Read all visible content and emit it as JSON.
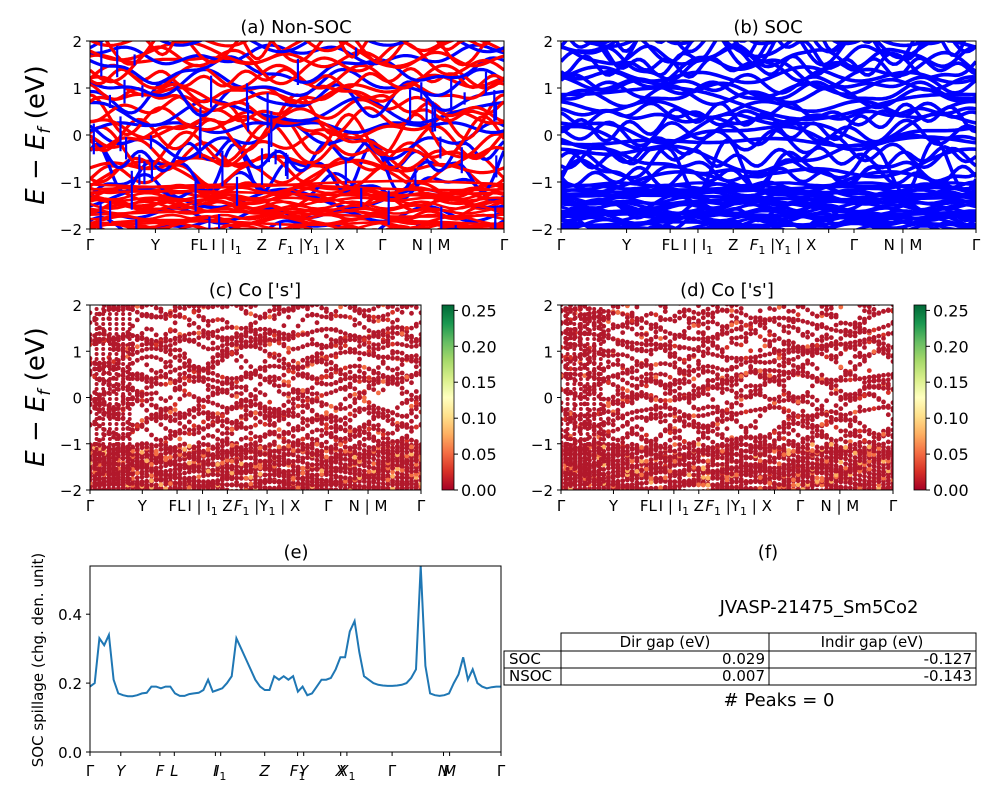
{
  "panels": {
    "a": {
      "title": "(a) Non-SOC"
    },
    "b": {
      "title": "(b) SOC"
    },
    "c": {
      "title": "(c)  Co ['s']"
    },
    "d": {
      "title": "(d) Co ['s']"
    },
    "e": {
      "title": "(e)"
    },
    "f": {
      "title": "(f)"
    }
  },
  "band_ylabel": "E − E_f (eV)",
  "band_ylabel_main": "E − E",
  "band_ylabel_sub": "f",
  "band_ylabel_unit": " (eV)",
  "band_yticks": [
    "2",
    "1",
    "0",
    "−1",
    "−2"
  ],
  "kpath_labels": {
    "gamma": "Γ",
    "y": "Y",
    "f_l": "FL",
    "i_i1": "I | I",
    "i1_sub": "1",
    "z": "Z",
    "f1_y1": "F",
    "f1_sub": "1",
    "y1_mid": " |Y",
    "y1_sub": "1",
    "x_part": "X",
    "n_m": "N | M"
  },
  "colorbar": {
    "ticks": [
      "0.25",
      "0.20",
      "0.15",
      "0.10",
      "0.05",
      "0.00"
    ],
    "colors": [
      "#006837",
      "#1a9850",
      "#66bd63",
      "#a6d96a",
      "#d9ef8b",
      "#ffffbf",
      "#fee08b",
      "#fdae61",
      "#f46d43",
      "#d73027",
      "#a50026"
    ]
  },
  "colors": {
    "non_soc_red": "#ff0000",
    "non_soc_blue": "#0000ff",
    "soc_blue": "#0000ff",
    "spillage_line": "#1f77b4",
    "proj_main": "#b2182b"
  },
  "spillage": {
    "ylabel": "SOC spillage (chg. den. unit)",
    "yticks": [
      "0.0",
      "0.2",
      "0.4"
    ],
    "xticks": [
      "Γ",
      "Y",
      "F",
      "L",
      "I",
      "I",
      "Z",
      "F",
      "Y",
      "X",
      "X",
      "Γ",
      "N",
      "M",
      "Γ"
    ]
  },
  "table": {
    "name": "JVASP-21475_Sm5Co2",
    "headers": [
      "Dir gap (eV)",
      "Indir gap (eV)"
    ],
    "rows": [
      {
        "label": "SOC",
        "dir": "0.029",
        "indir": "-0.127"
      },
      {
        "label": "NSOC",
        "dir": "0.007",
        "indir": "-0.143"
      }
    ],
    "peaks": "# Peaks = 0"
  },
  "chart_data": [
    {
      "type": "line",
      "title": "(a) Non-SOC",
      "ylabel": "E − E_f (eV)",
      "ylim": [
        -2,
        2
      ],
      "yticks": [
        -2,
        -1,
        0,
        1,
        2
      ],
      "xticklabels": [
        "Γ",
        "Y",
        "FL",
        "I | I1",
        "Z",
        "F1 |Y",
        "Y1 | X",
        "Γ",
        "N | M",
        "Γ"
      ],
      "series": [
        {
          "name": "Non-SOC (red)"
        },
        {
          "name": "Non-SOC (blue)"
        }
      ]
    },
    {
      "type": "line",
      "title": "(b) SOC",
      "ylim": [
        -2,
        2
      ],
      "yticks": [
        -2,
        -1,
        0,
        1,
        2
      ],
      "xticklabels": [
        "Γ",
        "Y",
        "FL",
        "I | I1",
        "Z",
        "F1 |Y",
        "Y1 | X",
        "Γ",
        "N | M",
        "Γ"
      ]
    },
    {
      "type": "scatter",
      "title": "(c)  Co ['s']",
      "ylabel": "E − E_f (eV)",
      "ylim": [
        -2,
        2
      ],
      "yticks": [
        -2,
        -1,
        0,
        1,
        2
      ],
      "colorbar_range": [
        0,
        0.25
      ]
    },
    {
      "type": "scatter",
      "title": "(d) Co ['s']",
      "ylim": [
        -2,
        2
      ],
      "yticks": [
        -2,
        -1,
        0,
        1,
        2
      ],
      "colorbar_range": [
        0,
        0.25
      ]
    },
    {
      "type": "line",
      "title": "(e)",
      "ylabel": "SOC spillage (chg. den. unit)",
      "ylim": [
        0,
        0.54
      ],
      "yticks": [
        0.0,
        0.2,
        0.4
      ],
      "xticklabels": [
        "Γ",
        "Y",
        "F",
        "L",
        "I",
        "I1",
        "Z",
        "F1",
        "Y",
        "X",
        "X1",
        "Γ",
        "N",
        "M",
        "Γ"
      ],
      "series": [
        {
          "values": [
            0.19,
            0.2,
            0.33,
            0.31,
            0.34,
            0.21,
            0.17,
            0.165,
            0.162,
            0.162,
            0.165,
            0.17,
            0.172,
            0.19,
            0.19,
            0.185,
            0.19,
            0.19,
            0.17,
            0.163,
            0.163,
            0.168,
            0.17,
            0.172,
            0.18,
            0.21,
            0.175,
            0.18,
            0.185,
            0.2,
            0.22,
            0.33,
            0.3,
            0.27,
            0.24,
            0.21,
            0.19,
            0.18,
            0.18,
            0.22,
            0.21,
            0.22,
            0.21,
            0.22,
            0.175,
            0.19,
            0.165,
            0.17,
            0.19,
            0.21,
            0.21,
            0.215,
            0.24,
            0.275,
            0.275,
            0.35,
            0.38,
            0.29,
            0.22,
            0.21,
            0.2,
            0.195,
            0.193,
            0.192,
            0.192,
            0.193,
            0.195,
            0.2,
            0.215,
            0.24,
            0.54,
            0.25,
            0.17,
            0.165,
            0.163,
            0.165,
            0.17,
            0.2,
            0.225,
            0.275,
            0.21,
            0.24,
            0.2,
            0.19,
            0.185,
            0.188,
            0.19,
            0.19
          ]
        }
      ]
    },
    {
      "type": "table",
      "title": "(f)",
      "columns": [
        "Dir gap (eV)",
        "Indir gap (eV)"
      ],
      "rows": [
        [
          "SOC",
          0.029,
          -0.127
        ],
        [
          "NSOC",
          0.007,
          -0.143
        ]
      ]
    }
  ]
}
